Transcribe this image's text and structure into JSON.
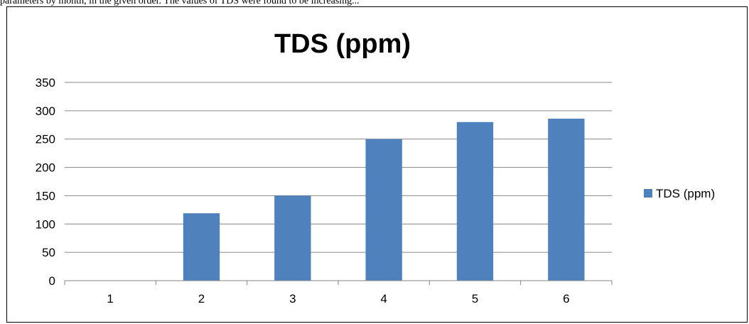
{
  "page": {
    "top_text": "parameters by month, in the given order. The values of TDS were found to be increasing..."
  },
  "chart_data": {
    "type": "bar",
    "title": "TDS (ppm)",
    "categories": [
      "1",
      "2",
      "3",
      "4",
      "5",
      "6"
    ],
    "series": [
      {
        "name": "TDS (ppm)",
        "values": [
          0,
          119,
          150,
          250,
          280,
          286
        ]
      }
    ],
    "ylim": [
      0,
      350
    ],
    "yticks": [
      0,
      50,
      100,
      150,
      200,
      250,
      300,
      350
    ],
    "xlabel": "",
    "ylabel": "",
    "grid": true,
    "legend_position": "right",
    "bar_color": "#4F81BD"
  }
}
